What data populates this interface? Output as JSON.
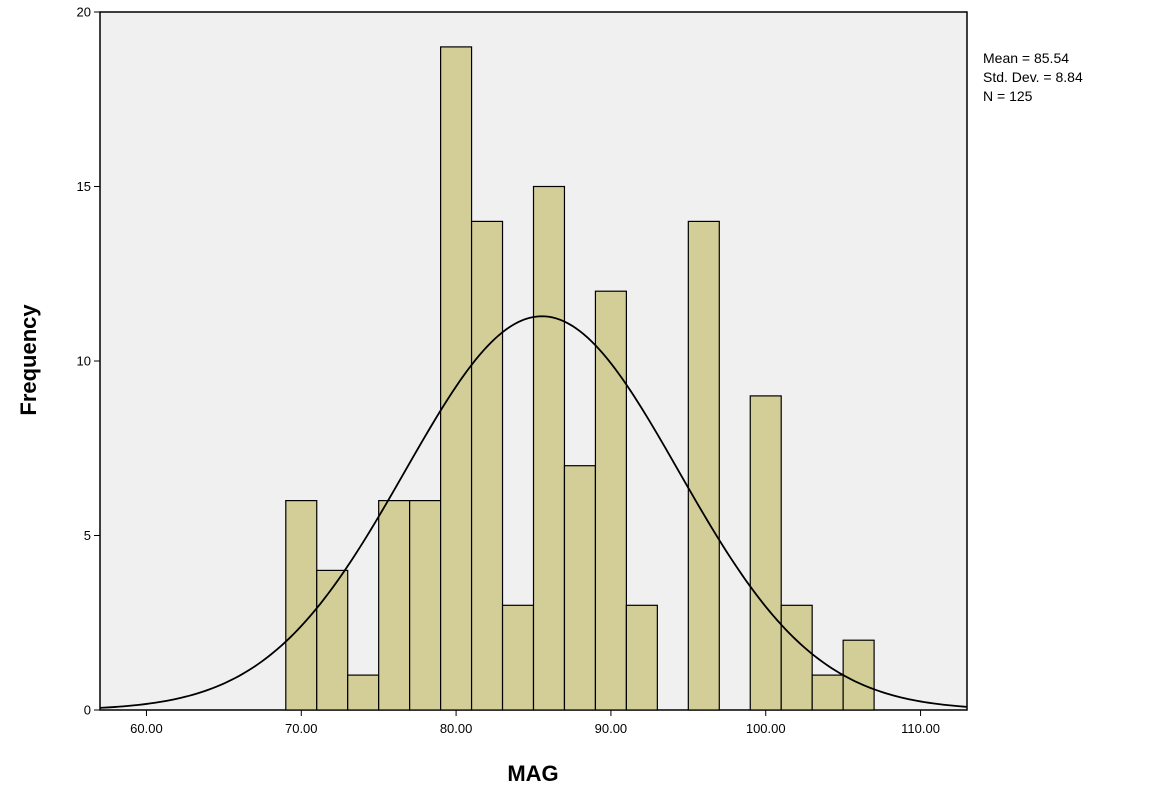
{
  "chart_data": {
    "type": "bar",
    "subtype": "histogram",
    "xlabel": "MAG",
    "ylabel": "Frequency",
    "xlim": [
      57,
      113
    ],
    "ylim": [
      0,
      20
    ],
    "xticks": [
      60,
      70,
      80,
      90,
      100,
      110
    ],
    "xtick_labels": [
      "60.00",
      "70.00",
      "80.00",
      "90.00",
      "100.00",
      "110.00"
    ],
    "yticks": [
      0,
      5,
      10,
      15,
      20
    ],
    "ytick_labels": [
      "0",
      "5",
      "10",
      "15",
      "20"
    ],
    "bin_width": 2,
    "bins": [
      {
        "start": 69,
        "end": 71,
        "count": 6
      },
      {
        "start": 71,
        "end": 73,
        "count": 4
      },
      {
        "start": 73,
        "end": 75,
        "count": 1
      },
      {
        "start": 75,
        "end": 77,
        "count": 6
      },
      {
        "start": 77,
        "end": 79,
        "count": 6
      },
      {
        "start": 79,
        "end": 81,
        "count": 19
      },
      {
        "start": 81,
        "end": 83,
        "count": 14
      },
      {
        "start": 83,
        "end": 85,
        "count": 3
      },
      {
        "start": 85,
        "end": 87,
        "count": 15
      },
      {
        "start": 87,
        "end": 89,
        "count": 7
      },
      {
        "start": 89,
        "end": 91,
        "count": 12
      },
      {
        "start": 91,
        "end": 93,
        "count": 3
      },
      {
        "start": 95,
        "end": 97,
        "count": 14
      },
      {
        "start": 99,
        "end": 101,
        "count": 9
      },
      {
        "start": 101,
        "end": 103,
        "count": 3
      },
      {
        "start": 103,
        "end": 105,
        "count": 1
      },
      {
        "start": 105,
        "end": 107,
        "count": 2
      }
    ],
    "normal_curve": {
      "mean": 85.54,
      "std": 8.84,
      "n": 125
    },
    "stats_box": [
      "Mean = 85.54",
      "Std. Dev. = 8.84",
      "N = 125"
    ],
    "stats_placement": "top-right, outside plot",
    "grid": false,
    "colors": {
      "plot_background": "#f0f0f0",
      "bar_fill": "#d3ce97",
      "bar_stroke": "#000000",
      "curve": "#000000"
    }
  }
}
